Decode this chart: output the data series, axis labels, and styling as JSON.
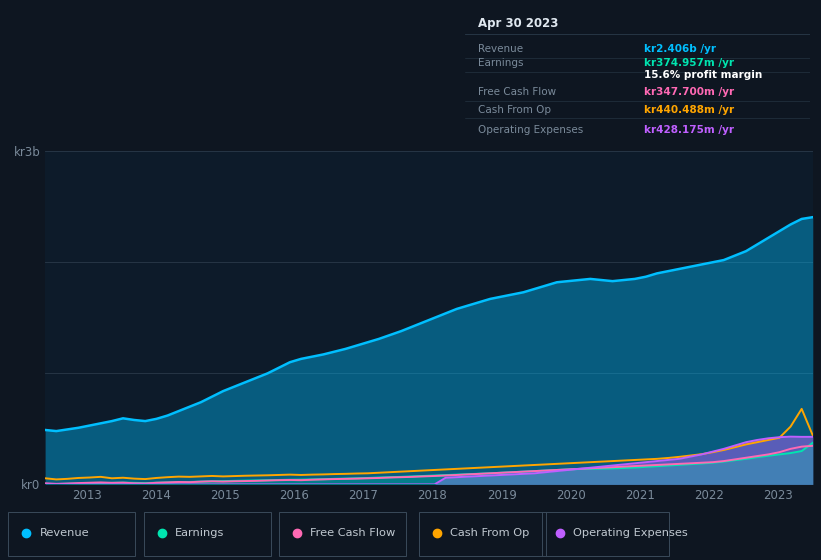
{
  "bg_color": "#0e1621",
  "chart_bg": "#0d1b2a",
  "x_ticks": [
    2013,
    2014,
    2015,
    2016,
    2017,
    2018,
    2019,
    2020,
    2021,
    2022,
    2023
  ],
  "ylim": [
    0,
    3000
  ],
  "xlim": [
    2012.4,
    2023.5
  ],
  "legend": [
    {
      "label": "Revenue",
      "color": "#00bfff"
    },
    {
      "label": "Earnings",
      "color": "#00e5b0"
    },
    {
      "label": "Free Cash Flow",
      "color": "#ff69b4"
    },
    {
      "label": "Cash From Op",
      "color": "#ffa500"
    },
    {
      "label": "Operating Expenses",
      "color": "#bf5fff"
    }
  ],
  "tooltip_title": "Apr 30 2023",
  "tooltip_rows": [
    {
      "label": "Revenue",
      "value": "kr2.406b /yr",
      "color": "#00bfff"
    },
    {
      "label": "Earnings",
      "value": "kr374.957m /yr",
      "color": "#00e5b0"
    },
    {
      "label": "",
      "value": "15.6% profit margin",
      "color": "#ffffff",
      "bold": true
    },
    {
      "label": "Free Cash Flow",
      "value": "kr347.700m /yr",
      "color": "#ff69b4"
    },
    {
      "label": "Cash From Op",
      "value": "kr440.488m /yr",
      "color": "#ffa500"
    },
    {
      "label": "Operating Expenses",
      "value": "kr428.175m /yr",
      "color": "#bf5fff"
    }
  ],
  "rev_color": "#00bfff",
  "earn_color": "#00e5b0",
  "fcf_color": "#ff69b4",
  "cop_color": "#ffa500",
  "opex_color": "#bf5fff",
  "revenue": [
    490,
    480,
    495,
    510,
    530,
    550,
    570,
    595,
    580,
    570,
    590,
    620,
    660,
    700,
    740,
    790,
    840,
    880,
    920,
    960,
    1000,
    1050,
    1100,
    1130,
    1150,
    1170,
    1195,
    1220,
    1250,
    1280,
    1310,
    1345,
    1380,
    1420,
    1460,
    1500,
    1540,
    1580,
    1610,
    1640,
    1670,
    1690,
    1710,
    1730,
    1760,
    1790,
    1820,
    1830,
    1840,
    1850,
    1840,
    1830,
    1840,
    1850,
    1870,
    1900,
    1920,
    1940,
    1960,
    1980,
    2000,
    2020,
    2060,
    2100,
    2160,
    2220,
    2280,
    2340,
    2390,
    2406
  ],
  "earnings": [
    5,
    3,
    6,
    8,
    10,
    12,
    14,
    16,
    14,
    12,
    15,
    18,
    20,
    22,
    25,
    28,
    30,
    32,
    34,
    36,
    38,
    40,
    42,
    43,
    45,
    47,
    50,
    52,
    55,
    58,
    62,
    65,
    68,
    72,
    76,
    80,
    84,
    88,
    92,
    96,
    100,
    105,
    110,
    115,
    120,
    125,
    130,
    135,
    138,
    140,
    142,
    144,
    148,
    152,
    158,
    164,
    170,
    176,
    182,
    188,
    195,
    205,
    218,
    230,
    245,
    258,
    270,
    282,
    300,
    374.957
  ],
  "free_cash_flow": [
    10,
    5,
    8,
    12,
    15,
    18,
    14,
    16,
    10,
    8,
    15,
    18,
    22,
    20,
    25,
    28,
    25,
    28,
    30,
    32,
    35,
    38,
    40,
    38,
    42,
    45,
    48,
    50,
    52,
    55,
    58,
    62,
    65,
    68,
    72,
    76,
    80,
    85,
    90,
    95,
    100,
    105,
    110,
    115,
    120,
    125,
    130,
    135,
    140,
    145,
    150,
    155,
    160,
    165,
    170,
    175,
    180,
    185,
    190,
    195,
    200,
    210,
    225,
    240,
    255,
    270,
    290,
    320,
    340,
    347.7
  ],
  "cash_from_op": [
    55,
    45,
    50,
    58,
    62,
    68,
    55,
    60,
    52,
    48,
    58,
    65,
    70,
    68,
    72,
    76,
    72,
    75,
    78,
    80,
    82,
    85,
    88,
    85,
    88,
    90,
    93,
    95,
    98,
    100,
    105,
    110,
    115,
    120,
    125,
    130,
    135,
    140,
    145,
    150,
    155,
    160,
    165,
    170,
    175,
    180,
    185,
    190,
    195,
    200,
    205,
    210,
    215,
    220,
    225,
    230,
    238,
    248,
    260,
    272,
    290,
    310,
    335,
    360,
    380,
    400,
    420,
    520,
    680,
    440.488
  ],
  "operating_expenses": [
    0,
    0,
    0,
    0,
    0,
    0,
    0,
    0,
    0,
    0,
    0,
    0,
    0,
    0,
    0,
    0,
    0,
    0,
    0,
    0,
    0,
    0,
    0,
    0,
    0,
    0,
    0,
    0,
    0,
    0,
    0,
    0,
    0,
    0,
    0,
    0,
    60,
    65,
    70,
    75,
    80,
    85,
    90,
    95,
    100,
    110,
    120,
    130,
    140,
    150,
    160,
    170,
    180,
    190,
    200,
    210,
    220,
    230,
    250,
    270,
    295,
    320,
    350,
    380,
    400,
    415,
    425,
    430,
    428,
    428.175
  ]
}
